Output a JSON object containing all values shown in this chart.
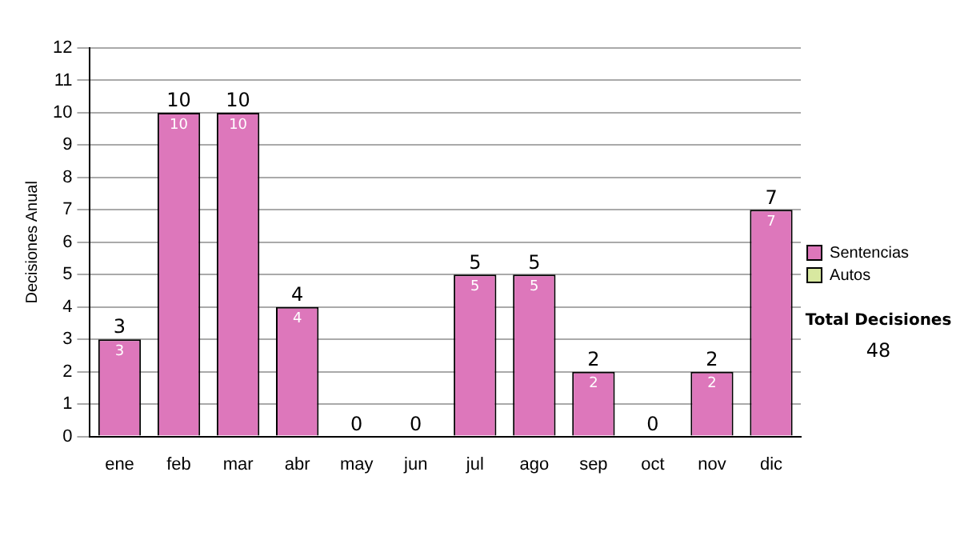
{
  "chart_data": {
    "type": "bar",
    "stacked": true,
    "ylabel": "Decisiones Anual",
    "categories": [
      "ene",
      "feb",
      "mar",
      "abr",
      "may",
      "jun",
      "jul",
      "ago",
      "sep",
      "oct",
      "nov",
      "dic"
    ],
    "series": [
      {
        "name": "Sentencias",
        "color": "#dd77bb",
        "values": [
          3,
          10,
          10,
          4,
          0,
          0,
          5,
          5,
          2,
          0,
          2,
          7
        ],
        "value_labels": [
          "3",
          "10",
          "10",
          "4",
          null,
          null,
          "5",
          "5",
          "2",
          null,
          "2",
          "7"
        ]
      },
      {
        "name": "Autos",
        "color": "#d8e8a0",
        "values": [
          0,
          0,
          0,
          0,
          0,
          0,
          0,
          0,
          0,
          0,
          0,
          0
        ]
      }
    ],
    "totals": [
      "3",
      "10",
      "10",
      "4",
      "0",
      "0",
      "5",
      "5",
      "2",
      "0",
      "2",
      "7"
    ],
    "ylim": [
      0,
      12
    ],
    "yticks": [
      0,
      1,
      2,
      3,
      4,
      5,
      6,
      7,
      8,
      9,
      10,
      11,
      12
    ],
    "grid": "y",
    "legend": "right",
    "annotations": [
      "Total Decisiones",
      "48"
    ]
  }
}
